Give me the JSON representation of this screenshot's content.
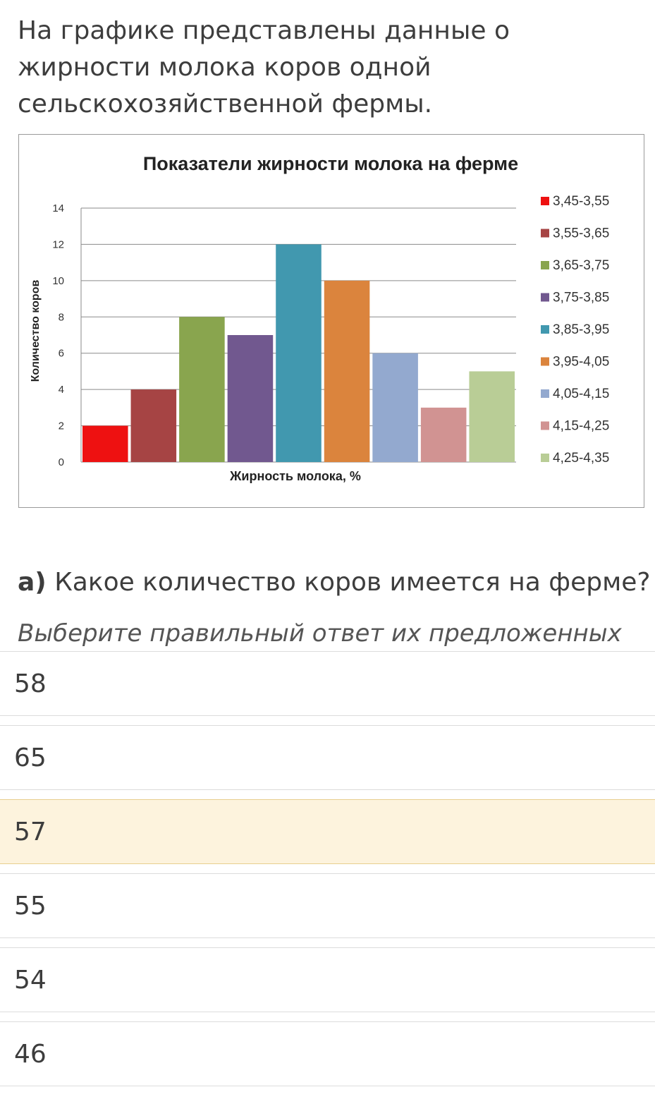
{
  "intro_text": "На графике представлены данные о жирности молока коров одной сельскохозяйственной фермы.",
  "question": {
    "prefix": "а)",
    "text": "Какое количество коров имеется на ферме?",
    "hint": "Выберите правильный ответ их предложенных"
  },
  "options": [
    {
      "label": "58",
      "selected": false
    },
    {
      "label": "65",
      "selected": false
    },
    {
      "label": "57",
      "selected": true
    },
    {
      "label": "55",
      "selected": false
    },
    {
      "label": "54",
      "selected": false
    },
    {
      "label": "46",
      "selected": false
    }
  ],
  "chart_data": {
    "type": "bar",
    "title": "Показатели жирности молока на ферме",
    "xlabel": "Жирность молока, %",
    "ylabel": "Количество коров",
    "ylim": [
      0,
      14
    ],
    "yticks": [
      "0",
      "2",
      "4",
      "6",
      "8",
      "10",
      "12",
      "14"
    ],
    "grid": true,
    "legend_position": "right",
    "categories": [
      "3,45-3,55",
      "3,55-3,65",
      "3,65-3,75",
      "3,75-3,85",
      "3,85-3,95",
      "3,95-4,05",
      "4,05-4,15",
      "4,15-4,25",
      "4,25-4,35"
    ],
    "values": [
      2,
      4,
      8,
      7,
      12,
      10,
      6,
      3,
      5
    ],
    "colors": [
      "#ee1111",
      "#a64444",
      "#89a54e",
      "#71588f",
      "#4198af",
      "#db843d",
      "#93a9cf",
      "#d19392",
      "#b9cd96"
    ]
  }
}
